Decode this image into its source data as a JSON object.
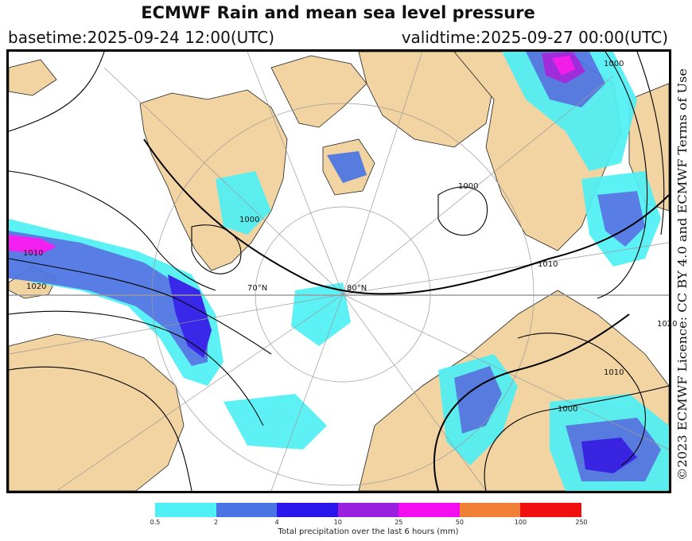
{
  "title": "ECMWF Rain and mean sea level pressure",
  "basetime": "basetime:2025-09-24 12:00(UTC)",
  "validtime": "validtime:2025-09-27 00:00(UTC)",
  "credit": "©2023 ECMWF Licence: CC BY 4.0 and ECMWF Terms of Use",
  "map": {
    "isobar_labels": [
      "1000",
      "1000",
      "1010",
      "1020",
      "1010",
      "1000",
      "1020",
      "1000",
      "1010"
    ],
    "meridian_labels": [
      "80°N",
      "70°N"
    ],
    "colors": {
      "land": "#f2d3a2",
      "ocean": "#ffffff",
      "isobar": "#000000",
      "grid": "#9a9a9a"
    }
  },
  "legend": {
    "title": "Total precipitation over the last 6 hours (mm)",
    "ticks": [
      "0.5",
      "2",
      "4",
      "10",
      "25",
      "50",
      "100",
      "250"
    ],
    "colors": [
      "#4ff0f5",
      "#4a74e4",
      "#2a16e8",
      "#9a20e0",
      "#f20ef0",
      "#f08036",
      "#f01010"
    ]
  }
}
